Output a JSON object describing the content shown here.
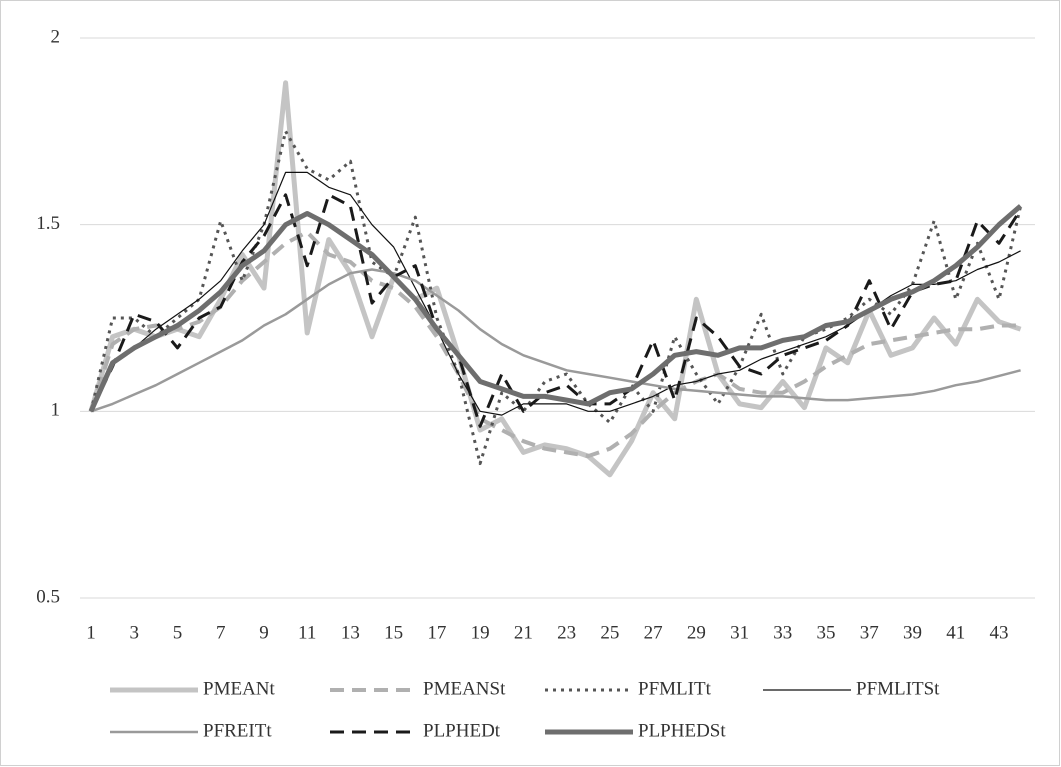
{
  "chart_data": {
    "type": "line",
    "categories": [
      1,
      null,
      3,
      null,
      5,
      null,
      7,
      null,
      9,
      null,
      11,
      null,
      13,
      null,
      15,
      null,
      17,
      null,
      19,
      null,
      21,
      null,
      23,
      null,
      25,
      null,
      27,
      null,
      29,
      null,
      31,
      null,
      33,
      null,
      35,
      null,
      37,
      null,
      39,
      null,
      41,
      null,
      43,
      null
    ],
    "ylim": [
      0.5,
      2
    ],
    "yticks": [
      0.5,
      1,
      1.5,
      2
    ],
    "grid": true,
    "legend": "bottom",
    "series": [
      {
        "name": "PMEANt",
        "color": "#c4c4c4",
        "line_style": "solid",
        "line_width": 5,
        "values": [
          1.0,
          1.2,
          1.22,
          1.2,
          1.22,
          1.2,
          1.3,
          1.42,
          1.33,
          1.88,
          1.21,
          1.46,
          1.37,
          1.2,
          1.36,
          1.3,
          1.33,
          1.15,
          0.95,
          0.98,
          0.89,
          0.91,
          0.9,
          0.88,
          0.83,
          0.92,
          1.05,
          0.98,
          1.3,
          1.1,
          1.02,
          1.01,
          1.08,
          1.01,
          1.17,
          1.13,
          1.27,
          1.15,
          1.17,
          1.25,
          1.18,
          1.3,
          1.24,
          1.22
        ]
      },
      {
        "name": "PMEANSt",
        "color": "#b0b0b0",
        "line_style": "dashed",
        "line_width": 4,
        "values": [
          1.0,
          1.18,
          1.22,
          1.23,
          1.22,
          1.24,
          1.28,
          1.35,
          1.4,
          1.45,
          1.48,
          1.42,
          1.4,
          1.35,
          1.33,
          1.28,
          1.2,
          1.1,
          0.98,
          0.95,
          0.92,
          0.9,
          0.89,
          0.88,
          0.9,
          0.94,
          1.0,
          1.05,
          1.08,
          1.1,
          1.06,
          1.05,
          1.05,
          1.08,
          1.12,
          1.15,
          1.18,
          1.19,
          1.2,
          1.21,
          1.22,
          1.22,
          1.23,
          1.23
        ]
      },
      {
        "name": "PFMLITt",
        "color": "#555555",
        "line_style": "dotted",
        "line_width": 3,
        "values": [
          1.0,
          1.25,
          1.25,
          1.2,
          1.25,
          1.3,
          1.51,
          1.35,
          1.5,
          1.75,
          1.65,
          1.62,
          1.67,
          1.4,
          1.36,
          1.52,
          1.25,
          1.1,
          0.86,
          1.05,
          1.0,
          1.08,
          1.1,
          1.02,
          0.97,
          1.07,
          1.0,
          1.2,
          1.1,
          1.02,
          1.12,
          1.26,
          1.1,
          1.2,
          1.22,
          1.25,
          1.3,
          1.26,
          1.34,
          1.51,
          1.3,
          1.45,
          1.3,
          1.55
        ]
      },
      {
        "name": "PFMLITSt",
        "color": "#111111",
        "line_style": "solid",
        "line_width": 1.2,
        "values": [
          1.0,
          1.13,
          1.17,
          1.22,
          1.26,
          1.3,
          1.35,
          1.43,
          1.5,
          1.64,
          1.64,
          1.6,
          1.58,
          1.5,
          1.44,
          1.33,
          1.22,
          1.1,
          1.0,
          0.99,
          1.02,
          1.02,
          1.02,
          1.0,
          1.0,
          1.02,
          1.04,
          1.07,
          1.08,
          1.1,
          1.11,
          1.14,
          1.16,
          1.18,
          1.2,
          1.23,
          1.27,
          1.31,
          1.34,
          1.34,
          1.35,
          1.38,
          1.4,
          1.43
        ]
      },
      {
        "name": "PFREITt",
        "color": "#9a9a9a",
        "line_style": "solid",
        "line_width": 2.5,
        "values": [
          1.0,
          1.02,
          1.045,
          1.07,
          1.1,
          1.13,
          1.16,
          1.19,
          1.23,
          1.26,
          1.3,
          1.34,
          1.37,
          1.38,
          1.37,
          1.35,
          1.31,
          1.27,
          1.22,
          1.18,
          1.15,
          1.13,
          1.11,
          1.1,
          1.09,
          1.08,
          1.07,
          1.06,
          1.055,
          1.05,
          1.045,
          1.04,
          1.04,
          1.035,
          1.03,
          1.03,
          1.035,
          1.04,
          1.045,
          1.055,
          1.07,
          1.08,
          1.095,
          1.11
        ]
      },
      {
        "name": "PLPHEDt",
        "color": "#1a1a1a",
        "line_style": "dashed",
        "line_width": 3,
        "values": [
          1.0,
          1.12,
          1.26,
          1.24,
          1.17,
          1.25,
          1.28,
          1.4,
          1.47,
          1.58,
          1.39,
          1.58,
          1.55,
          1.29,
          1.36,
          1.39,
          1.22,
          1.15,
          0.96,
          1.1,
          1.0,
          1.05,
          1.07,
          1.02,
          1.02,
          1.06,
          1.19,
          1.03,
          1.25,
          1.2,
          1.12,
          1.1,
          1.15,
          1.17,
          1.19,
          1.23,
          1.35,
          1.22,
          1.32,
          1.34,
          1.35,
          1.51,
          1.45,
          1.54
        ]
      },
      {
        "name": "PLPHEDSt",
        "color": "#6e6e6e",
        "line_style": "solid",
        "line_width": 5,
        "values": [
          1.0,
          1.13,
          1.17,
          1.2,
          1.23,
          1.27,
          1.32,
          1.39,
          1.43,
          1.5,
          1.53,
          1.5,
          1.46,
          1.42,
          1.36,
          1.3,
          1.22,
          1.15,
          1.08,
          1.06,
          1.04,
          1.04,
          1.03,
          1.02,
          1.05,
          1.06,
          1.1,
          1.15,
          1.16,
          1.15,
          1.17,
          1.17,
          1.19,
          1.2,
          1.23,
          1.24,
          1.27,
          1.3,
          1.32,
          1.35,
          1.39,
          1.44,
          1.5,
          1.55
        ]
      }
    ]
  }
}
